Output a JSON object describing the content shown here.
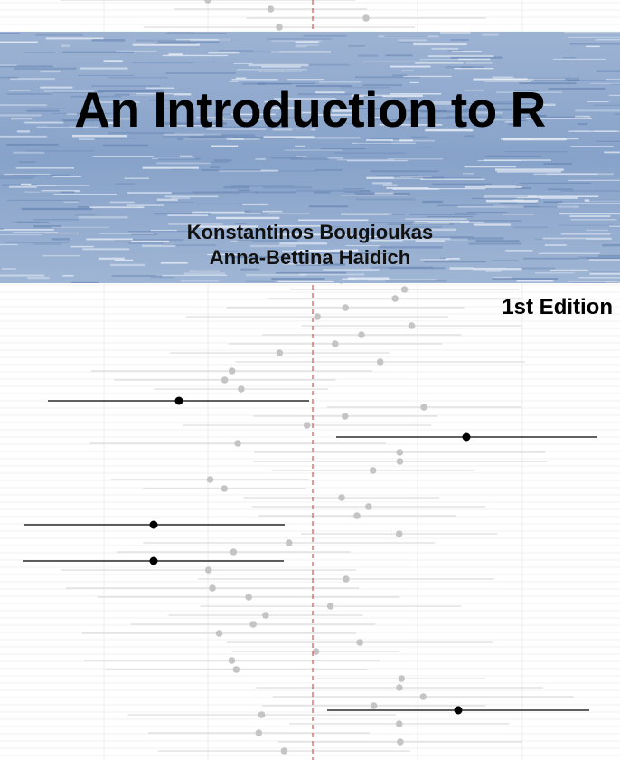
{
  "cover": {
    "title": "An Introduction to R",
    "authors": [
      "Konstantinos Bougioukas",
      "Anna-Bettina Haidich"
    ],
    "edition": "1st Edition"
  },
  "colors": {
    "band_blue": "#8ea8cc",
    "reference_line": "#d9534f",
    "background_ci": "#d6d6d6",
    "background_point": "#c4c4c4",
    "highlight": "#000000"
  }
}
